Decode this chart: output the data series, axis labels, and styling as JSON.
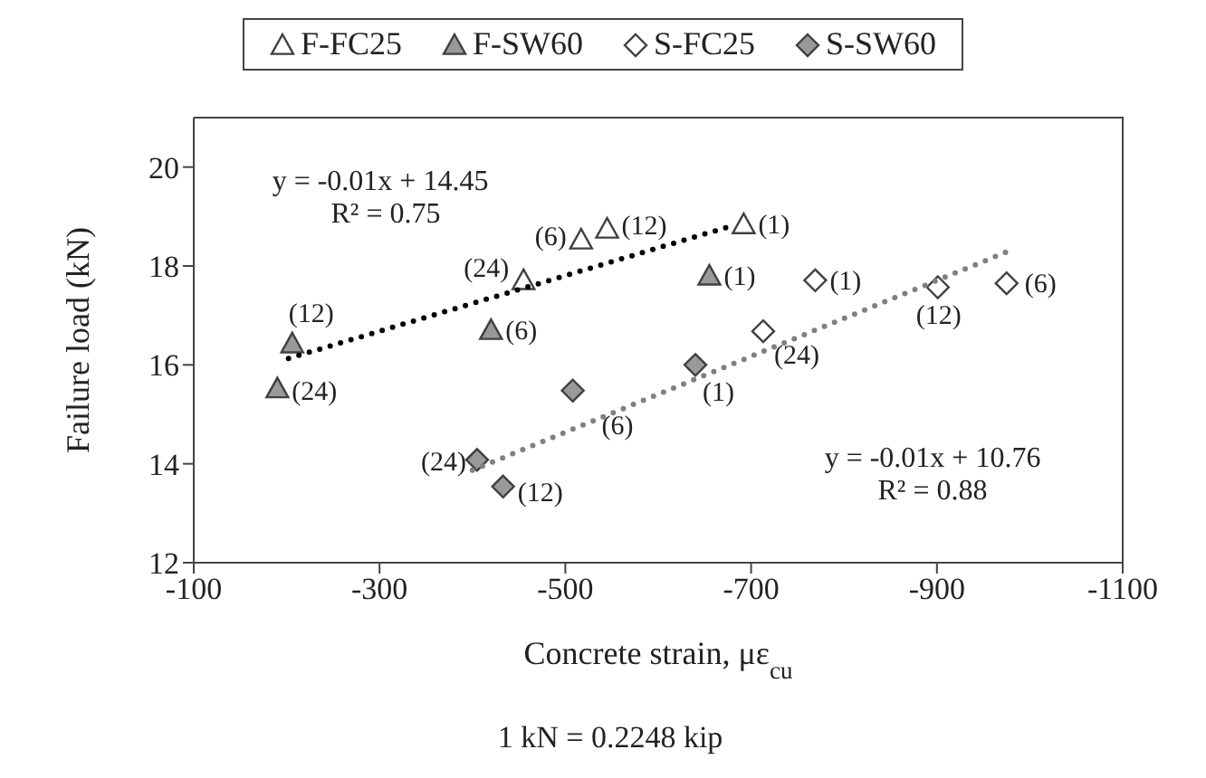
{
  "chart_data": {
    "type": "scatter",
    "xlabel": "Concrete strain, με$_{cu}$",
    "ylabel": "Failure load (kN)",
    "xlim": [
      -100,
      -1100
    ],
    "xticks": [
      -100,
      -300,
      -500,
      -700,
      -900,
      -1100
    ],
    "ylim": [
      12,
      21
    ],
    "yticks": [
      12,
      14,
      16,
      18,
      20
    ],
    "legend": "top",
    "series": [
      {
        "name": "F-FC25",
        "marker": "triangle",
        "color": "#ffffff",
        "x": [
          -692,
          -545,
          -517,
          -455
        ],
        "values": [
          18.84,
          18.75,
          18.53,
          17.71
        ]
      },
      {
        "name": "F-SW60",
        "marker": "triangle",
        "color": "#999999",
        "x": [
          -655,
          -420,
          -206,
          -190
        ],
        "values": [
          17.8,
          16.7,
          16.43,
          15.52
        ]
      },
      {
        "name": "S-FC25",
        "marker": "diamond",
        "color": "#ffffff",
        "x": [
          -769,
          -975,
          -901,
          -713
        ],
        "values": [
          17.71,
          17.65,
          17.57,
          16.68
        ]
      },
      {
        "name": "S-SW60",
        "marker": "diamond",
        "color": "#999999",
        "x": [
          -640,
          -508,
          -405,
          -433
        ],
        "values": [
          16.0,
          15.48,
          14.08,
          13.54
        ]
      },
      {
        "type": "line",
        "line_style": "dotted",
        "marker": "none",
        "color": "#000000",
        "x": [
          -202,
          -679
        ],
        "values": [
          16.13,
          18.81
        ]
      },
      {
        "type": "line",
        "line_style": "dotted",
        "marker": "none",
        "color": "#808080",
        "x": [
          -400,
          -976
        ],
        "values": [
          13.87,
          18.29
        ]
      }
    ],
    "annotations": [
      {
        "text": "(1)",
        "x": -692,
        "y": 18.84
      },
      {
        "text": "(12)",
        "x": -545,
        "y": 18.75
      },
      {
        "text": "(6)",
        "x": -517,
        "y": 18.53
      },
      {
        "text": "(24)",
        "x": -455,
        "y": 17.71
      },
      {
        "text": "(1)",
        "x": -655,
        "y": 17.8
      },
      {
        "text": "(6)",
        "x": -420,
        "y": 16.7
      },
      {
        "text": "(12)",
        "x": -206,
        "y": 16.43
      },
      {
        "text": "(24)",
        "x": -190,
        "y": 15.52
      },
      {
        "text": "(1)",
        "x": -769,
        "y": 17.71
      },
      {
        "text": "(6)",
        "x": -975,
        "y": 17.65
      },
      {
        "text": "(12)",
        "x": -901,
        "y": 17.57
      },
      {
        "text": "(24)",
        "x": -713,
        "y": 16.68
      },
      {
        "text": "(1)",
        "x": -640,
        "y": 16.0
      },
      {
        "text": "(6)",
        "x": -508,
        "y": 15.48
      },
      {
        "text": "(24)",
        "x": -405,
        "y": 14.08
      },
      {
        "text": "(12)",
        "x": -433,
        "y": 13.54
      },
      "y = -0.01x + 14.45",
      "R² = 0.75",
      "y = -0.01x + 10.76",
      "R² = 0.88",
      "1 kN = 0.2248 kip"
    ]
  }
}
